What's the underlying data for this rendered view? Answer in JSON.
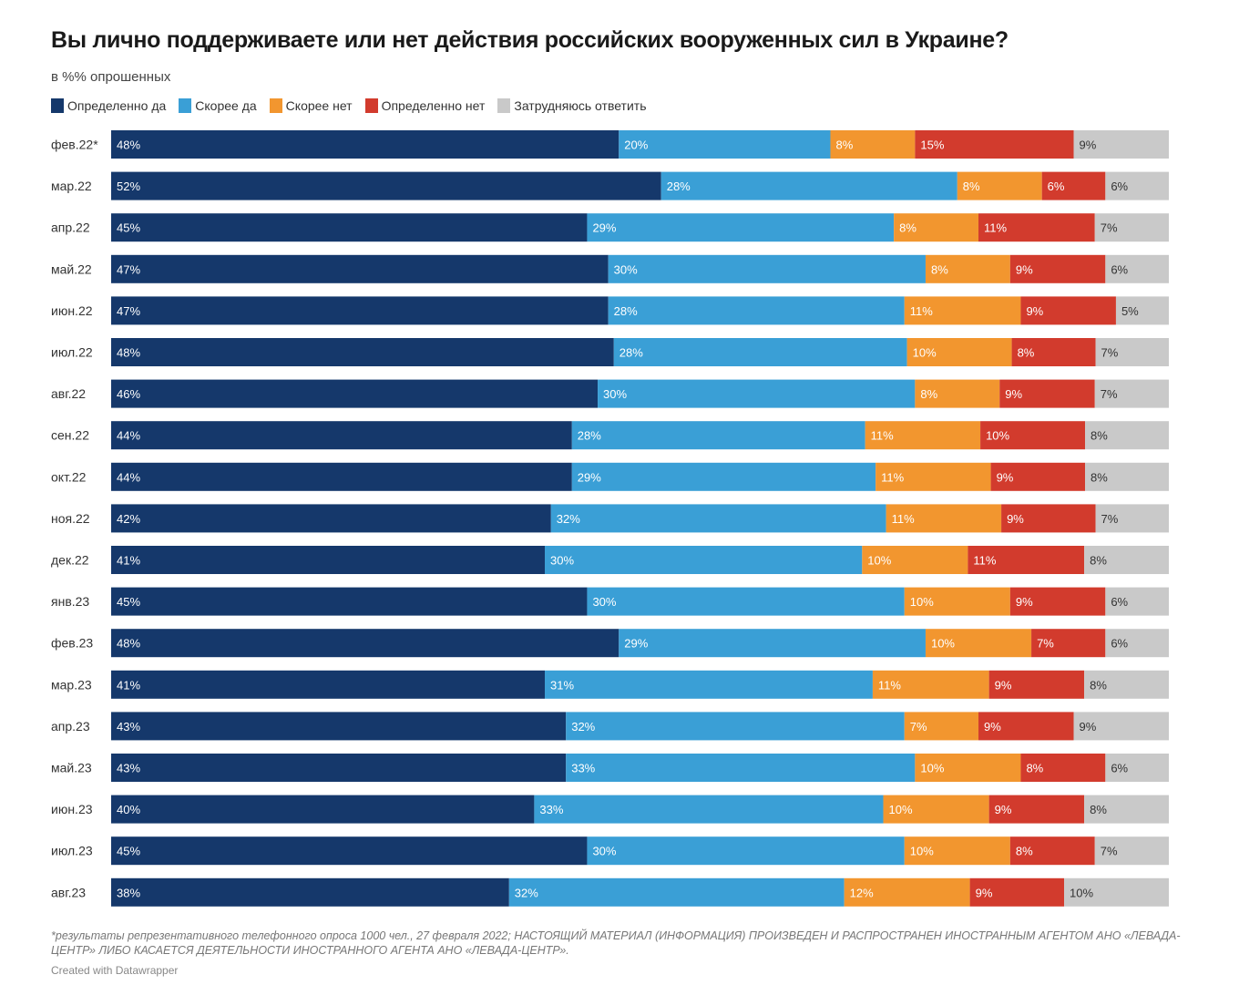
{
  "title": "Вы лично поддерживаете или нет действия российских вооруженных сил в Украине?",
  "subtitle": "в %% опрошенных",
  "footnote": "*результаты репрезентативного телефонного опроса 1000 чел., 27 февраля 2022; НАСТОЯЩИЙ МАТЕРИАЛ (ИНФОРМАЦИЯ) ПРОИЗВЕДЕН И РАСПРОСТРАНЕН ИНОСТРАННЫМ АГЕНТОМ АНО «ЛЕВАДА-ЦЕНТР» ЛИБО КАСАЕТСЯ ДЕЯТЕЛЬНОСТИ ИНОСТРАННОГО АГЕНТА АНО «ЛЕВАДА-ЦЕНТР».",
  "credit": "Created with Datawrapper",
  "chart_data": {
    "type": "bar",
    "orientation": "horizontal",
    "stacked": true,
    "value_suffix": "%",
    "title": "Вы лично поддерживаете или нет действия российских вооруженных сил в Украине?",
    "subtitle": "в %% опрошенных",
    "legend_position": "top-left",
    "categories": [
      "фев.22*",
      "мар.22",
      "апр.22",
      "май.22",
      "июн.22",
      "июл.22",
      "авг.22",
      "сен.22",
      "окт.22",
      "ноя.22",
      "дек.22",
      "янв.23",
      "фев.23",
      "мар.23",
      "апр.23",
      "май.23",
      "июн.23",
      "июл.23",
      "авг.23"
    ],
    "series": [
      {
        "name": "Определенно да",
        "color": "#15386b",
        "label_color": "#ffffff",
        "values": [
          48,
          52,
          45,
          47,
          47,
          48,
          46,
          44,
          44,
          42,
          41,
          45,
          48,
          41,
          43,
          43,
          40,
          45,
          38
        ]
      },
      {
        "name": "Скорее да",
        "color": "#3a9fd6",
        "label_color": "#ffffff",
        "values": [
          20,
          28,
          29,
          30,
          28,
          28,
          30,
          28,
          29,
          32,
          30,
          30,
          29,
          31,
          32,
          33,
          33,
          30,
          32
        ]
      },
      {
        "name": "Скорее нет",
        "color": "#f2962f",
        "label_color": "#ffffff",
        "values": [
          8,
          8,
          8,
          8,
          11,
          10,
          8,
          11,
          11,
          11,
          10,
          10,
          10,
          11,
          7,
          10,
          10,
          10,
          12
        ]
      },
      {
        "name": "Определенно нет",
        "color": "#d23b2d",
        "label_color": "#ffffff",
        "values": [
          15,
          6,
          11,
          9,
          9,
          8,
          9,
          10,
          9,
          9,
          11,
          9,
          7,
          9,
          9,
          8,
          9,
          8,
          9
        ]
      },
      {
        "name": "Затрудняюсь ответить",
        "color": "#c9c9c9",
        "label_color": "#333333",
        "values": [
          9,
          6,
          7,
          6,
          5,
          7,
          7,
          8,
          8,
          7,
          8,
          6,
          6,
          8,
          9,
          6,
          8,
          7,
          10
        ]
      }
    ]
  }
}
